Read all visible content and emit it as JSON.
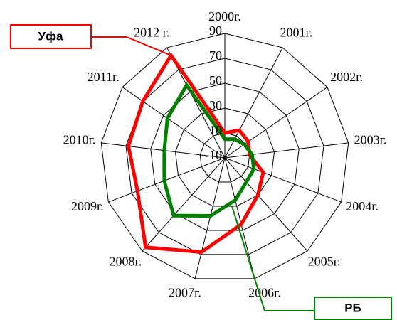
{
  "chart_data": {
    "type": "radar",
    "categories": [
      "2000г.",
      "2001г.",
      "2002г.",
      "2003г.",
      "2004г.",
      "2005г.",
      "2006г.",
      "2007г.",
      "2008г.",
      "2009г.",
      "2010г.",
      "2011г.",
      "2012 г."
    ],
    "series": [
      {
        "name": "Уфа",
        "color": "#ff0000",
        "values": [
          10,
          15,
          13,
          10,
          23,
          30,
          45,
          68,
          86,
          65,
          68,
          70,
          83
        ]
      },
      {
        "name": "РБ",
        "color": "#008000",
        "values": [
          5,
          7,
          9,
          12,
          15,
          16,
          25,
          38,
          52,
          42,
          39,
          46,
          56
        ]
      }
    ],
    "ylim": [
      -10,
      90
    ],
    "yticks": [
      -10,
      10,
      30,
      50,
      70,
      90
    ],
    "grid": true
  }
}
